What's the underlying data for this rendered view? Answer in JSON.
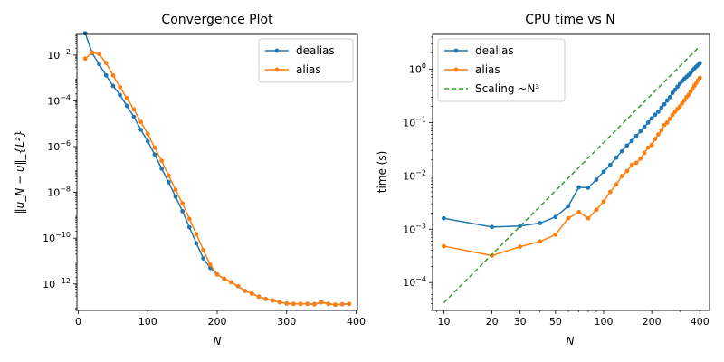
{
  "chart_data": [
    {
      "type": "line",
      "title": "Convergence Plot",
      "xlabel": "N",
      "ylabel": "‖u_N − u‖_{L²}",
      "xscale": "linear",
      "yscale": "log",
      "xlim": [
        -2,
        402
      ],
      "ylim": [
        7e-14,
        0.08
      ],
      "xticks": [
        0,
        100,
        200,
        300,
        400
      ],
      "xticklabels": [
        "0",
        "100",
        "200",
        "300",
        "400"
      ],
      "yticks": [
        1e-12,
        1e-10,
        1e-08,
        1e-06,
        0.0001,
        0.01
      ],
      "yticklabels": [
        "10^-12",
        "10^-10",
        "10^-8",
        "10^-6",
        "10^-4",
        "10^-2"
      ],
      "legend_location": "top-right",
      "series": [
        {
          "name": "dealias",
          "color": "#1f77b4",
          "x": [
            10,
            20,
            30,
            40,
            50,
            60,
            70,
            80,
            90,
            100,
            110,
            120,
            130,
            140,
            150,
            160,
            170,
            180,
            190,
            200,
            210,
            220,
            230,
            240,
            250,
            260,
            270,
            280,
            290,
            300,
            310,
            320,
            330,
            340,
            350,
            360,
            370,
            380,
            390
          ],
          "y": [
            0.09,
            0.012,
            0.004,
            0.0013,
            0.00045,
            0.00018,
            6e-05,
            2e-05,
            5.5e-06,
            1.7e-06,
            4.5e-07,
            1.1e-07,
            2.8e-08,
            6.5e-09,
            1.5e-09,
            3e-10,
            6e-11,
            1.3e-11,
            5e-12,
            2.6e-12,
            1.7e-12,
            1.2e-12,
            8e-13,
            5e-13,
            3.8e-13,
            2.8e-13,
            2.2e-13,
            1.9e-13,
            1.6e-13,
            1.4e-13,
            1.35e-13,
            1.35e-13,
            1.35e-13,
            1.3e-13,
            1.6e-13,
            1.35e-13,
            1.25e-13,
            1.3e-13,
            1.35e-13
          ]
        },
        {
          "name": "alias",
          "color": "#ff7f0e",
          "x": [
            10,
            20,
            30,
            40,
            50,
            60,
            70,
            80,
            90,
            100,
            110,
            120,
            130,
            140,
            150,
            160,
            170,
            180,
            190,
            200,
            210,
            220,
            230,
            240,
            250,
            260,
            270,
            280,
            290,
            300,
            310,
            320,
            330,
            340,
            350,
            360,
            370,
            380,
            390
          ],
          "y": [
            0.007,
            0.013,
            0.011,
            0.0045,
            0.0013,
            0.0004,
            0.00013,
            4.2e-05,
            1.2e-05,
            3.6e-06,
            9e-07,
            2.4e-07,
            5.5e-08,
            1.3e-08,
            3.3e-09,
            7e-10,
            1.5e-10,
            3e-11,
            7e-12,
            2.6e-12,
            1.7e-12,
            1.2e-12,
            8e-13,
            5e-13,
            3.8e-13,
            2.8e-13,
            2.2e-13,
            1.9e-13,
            1.6e-13,
            1.4e-13,
            1.35e-13,
            1.35e-13,
            1.35e-13,
            1.3e-13,
            1.6e-13,
            1.35e-13,
            1.25e-13,
            1.3e-13,
            1.35e-13
          ]
        }
      ]
    },
    {
      "type": "line",
      "title": "CPU time vs N",
      "xlabel": "N",
      "ylabel": "time (s)",
      "xscale": "log",
      "yscale": "log",
      "xlim": [
        8.5,
        460
      ],
      "ylim": [
        3e-05,
        4.5
      ],
      "xticks": [
        10,
        20,
        30,
        50,
        100,
        200,
        400
      ],
      "xticklabels": [
        "10",
        "20",
        "30",
        "50",
        "100",
        "200",
        "400"
      ],
      "yticks": [
        0.0001,
        0.001,
        0.01,
        0.1,
        1
      ],
      "yticklabels": [
        "10^-4",
        "10^-3",
        "10^-2",
        "10^-1",
        "10^0"
      ],
      "legend_location": "top-left",
      "series": [
        {
          "name": "dealias",
          "color": "#1f77b4",
          "style": "solid",
          "x": [
            10,
            20,
            30,
            40,
            50,
            60,
            70,
            80,
            90,
            100,
            110,
            120,
            130,
            140,
            150,
            160,
            170,
            180,
            190,
            200,
            210,
            220,
            230,
            240,
            250,
            260,
            270,
            280,
            290,
            300,
            310,
            320,
            330,
            340,
            350,
            360,
            370,
            380,
            390,
            400
          ],
          "y": [
            0.0016,
            0.0011,
            0.00115,
            0.0013,
            0.0017,
            0.0027,
            0.0061,
            0.006,
            0.0085,
            0.012,
            0.016,
            0.022,
            0.029,
            0.037,
            0.045,
            0.056,
            0.069,
            0.083,
            0.1,
            0.12,
            0.14,
            0.16,
            0.19,
            0.22,
            0.26,
            0.3,
            0.36,
            0.41,
            0.47,
            0.53,
            0.6,
            0.66,
            0.72,
            0.78,
            0.85,
            0.95,
            1.03,
            1.12,
            1.2,
            1.3
          ]
        },
        {
          "name": "alias",
          "color": "#ff7f0e",
          "style": "solid",
          "x": [
            10,
            20,
            30,
            40,
            50,
            60,
            70,
            80,
            90,
            100,
            110,
            120,
            130,
            140,
            150,
            160,
            170,
            180,
            190,
            200,
            210,
            220,
            230,
            240,
            250,
            260,
            270,
            280,
            290,
            300,
            310,
            320,
            330,
            340,
            350,
            360,
            370,
            380,
            390,
            400
          ],
          "y": [
            0.00048,
            0.00032,
            0.00047,
            0.00059,
            0.00079,
            0.0016,
            0.0021,
            0.0016,
            0.0023,
            0.0033,
            0.005,
            0.0069,
            0.0099,
            0.0123,
            0.016,
            0.0175,
            0.021,
            0.027,
            0.034,
            0.038,
            0.049,
            0.06,
            0.072,
            0.09,
            0.1,
            0.118,
            0.14,
            0.16,
            0.18,
            0.2,
            0.23,
            0.26,
            0.3,
            0.33,
            0.38,
            0.43,
            0.49,
            0.55,
            0.62,
            0.69
          ]
        },
        {
          "name": "Scaling ~N³",
          "color": "#2ca02c",
          "style": "dashed",
          "x": [
            10,
            400
          ],
          "y": [
            4.2e-05,
            2.7
          ]
        }
      ]
    }
  ]
}
